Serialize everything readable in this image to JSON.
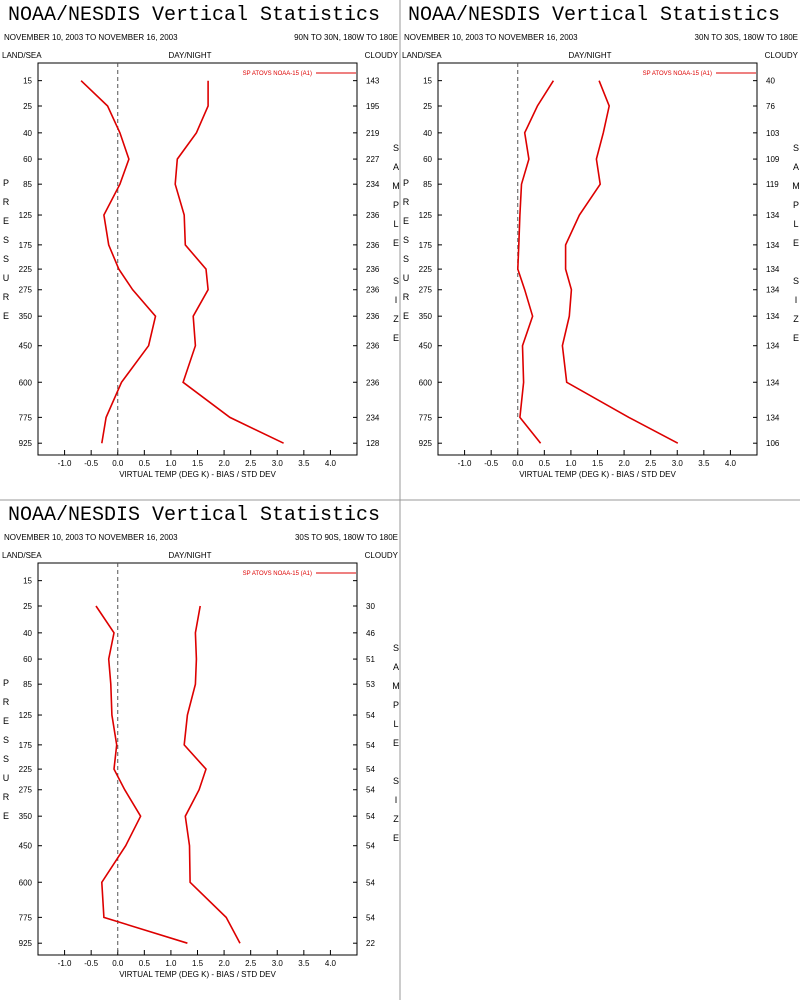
{
  "chart_data": [
    {
      "type": "line",
      "title": "NOAA/NESDIS Vertical Statistics",
      "date_range": "NOVEMBER 10, 2003 TO NOVEMBER 16, 2003",
      "region": "90N TO 30N, 180W TO 180E",
      "land_sea": "LAND/SEA",
      "day_night": "DAY/NIGHT",
      "cloudy": "CLOUDY",
      "ylabel": "PRESSURE",
      "y2label": "SAMPLE SIZE",
      "xlabel": "VIRTUAL TEMP (DEG K) - BIAS / STD DEV",
      "y": [
        15,
        25,
        40,
        60,
        85,
        125,
        175,
        225,
        275,
        350,
        450,
        600,
        775,
        925
      ],
      "ylim": [
        10,
        1000
      ],
      "xlim": [
        -1.5,
        4.5
      ],
      "xticks": [
        {
          "value": -1,
          "label": "-1.0"
        },
        -0.5,
        {
          "value": 0,
          "label": "0.0"
        },
        0.5,
        {
          "value": 1,
          "label": "1.0"
        },
        1.5,
        {
          "value": 2,
          "label": "2.0"
        },
        2.5,
        {
          "value": 3,
          "label": "3.0"
        },
        3.5,
        {
          "value": 4,
          "label": "4.0"
        }
      ],
      "sample_sizes": [
        143,
        195,
        219,
        227,
        234,
        236,
        236,
        236,
        236,
        236,
        236,
        236,
        234,
        128
      ],
      "series": [
        {
          "name": "SP ATOVS NOAA-15 (A1)",
          "color": "#dd0000",
          "bias": [
            -0.69,
            -0.19,
            0.04,
            0.21,
            0.04,
            -0.26,
            -0.17,
            0.02,
            0.28,
            0.71,
            0.58,
            0.07,
            -0.22,
            -0.3
          ],
          "std_dev": [
            1.7,
            1.7,
            1.48,
            1.12,
            1.08,
            1.25,
            1.27,
            1.66,
            1.7,
            1.42,
            1.46,
            1.23,
            2.11,
            3.12
          ]
        }
      ]
    },
    {
      "type": "line",
      "title": "NOAA/NESDIS Vertical Statistics",
      "date_range": "NOVEMBER 10, 2003 TO NOVEMBER 16, 2003",
      "region": "30N TO 30S, 180W TO 180E",
      "land_sea": "LAND/SEA",
      "day_night": "DAY/NIGHT",
      "cloudy": "CLOUDY",
      "ylabel": "PRESSURE",
      "y2label": "SAMPLE SIZE",
      "xlabel": "VIRTUAL TEMP (DEG K) - BIAS / STD DEV",
      "y": [
        15,
        25,
        40,
        60,
        85,
        125,
        175,
        225,
        275,
        350,
        450,
        600,
        775,
        925
      ],
      "ylim": [
        10,
        1000
      ],
      "xlim": [
        -1.5,
        4.5
      ],
      "xticks": [
        {
          "value": -1,
          "label": "-1.0"
        },
        -0.5,
        {
          "value": 0,
          "label": "0.0"
        },
        0.5,
        {
          "value": 1,
          "label": "1.0"
        },
        1.5,
        {
          "value": 2,
          "label": "2.0"
        },
        2.5,
        {
          "value": 3,
          "label": "3.0"
        },
        3.5,
        {
          "value": 4,
          "label": "4.0"
        }
      ],
      "sample_sizes": [
        40,
        76,
        103,
        109,
        119,
        134,
        134,
        134,
        134,
        134,
        134,
        134,
        134,
        106
      ],
      "series": [
        {
          "name": "SP ATOVS NOAA-15 (A1)",
          "color": "#dd0000",
          "bias": [
            0.67,
            0.37,
            0.13,
            0.21,
            0.07,
            0.04,
            0.02,
            0.0,
            0.13,
            0.28,
            0.09,
            0.11,
            0.04,
            0.43
          ],
          "std_dev": [
            1.53,
            1.72,
            1.61,
            1.48,
            1.55,
            1.16,
            0.9,
            0.9,
            1.01,
            0.97,
            0.84,
            0.92,
            2.09,
            3.01
          ]
        }
      ]
    },
    {
      "type": "line",
      "title": "NOAA/NESDIS Vertical Statistics",
      "date_range": "NOVEMBER 10, 2003 TO NOVEMBER 16, 2003",
      "region": "30S TO 90S, 180W TO 180E",
      "land_sea": "LAND/SEA",
      "day_night": "DAY/NIGHT",
      "cloudy": "CLOUDY",
      "ylabel": "PRESSURE",
      "y2label": "SAMPLE SIZE",
      "xlabel": "VIRTUAL TEMP (DEG K) - BIAS / STD DEV",
      "y": [
        15,
        25,
        40,
        60,
        85,
        125,
        175,
        225,
        275,
        350,
        450,
        600,
        775,
        925
      ],
      "ylim": [
        10,
        1000
      ],
      "xlim": [
        -1.5,
        4.5
      ],
      "xticks": [
        {
          "value": -1,
          "label": "-1.0"
        },
        -0.5,
        {
          "value": 0,
          "label": "0.0"
        },
        0.5,
        {
          "value": 1,
          "label": "1.0"
        },
        1.5,
        {
          "value": 2,
          "label": "2.0"
        },
        2.5,
        {
          "value": 3,
          "label": "3.0"
        },
        3.5,
        {
          "value": 4,
          "label": "4.0"
        }
      ],
      "sample_sizes": [
        null,
        30,
        46,
        51,
        53,
        54,
        54,
        54,
        54,
        54,
        54,
        54,
        54,
        22
      ],
      "series": [
        {
          "name": "SP ATOVS NOAA-15 (A1)",
          "color": "#dd0000",
          "bias": [
            null,
            -0.41,
            -0.07,
            -0.17,
            -0.13,
            -0.11,
            -0.02,
            -0.07,
            0.13,
            0.43,
            0.15,
            -0.3,
            -0.26,
            1.31
          ],
          "std_dev": [
            null,
            1.55,
            1.46,
            1.48,
            1.46,
            1.31,
            1.25,
            1.66,
            1.53,
            1.27,
            1.35,
            1.36,
            2.04,
            2.3
          ]
        }
      ]
    }
  ]
}
